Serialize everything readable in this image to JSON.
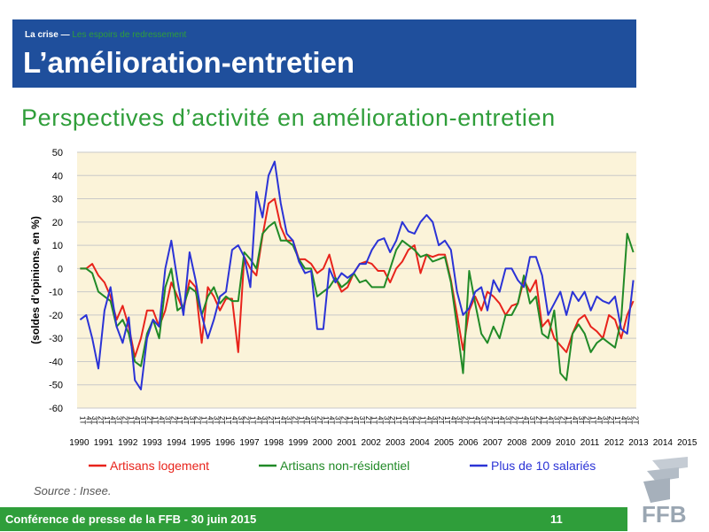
{
  "header": {
    "section": "La crise",
    "separator": " — ",
    "subsection": "Les espoirs de redressement",
    "title": "L’amélioration-entretien"
  },
  "chart_data": {
    "type": "line",
    "title": "Perspectives d’activité en amélioration-entretien",
    "ylabel": "(soldes d’opinions, en %)",
    "ylim": [
      -60,
      50
    ],
    "yticks": [
      50,
      40,
      30,
      20,
      10,
      0,
      -10,
      -20,
      -30,
      -40,
      -50,
      -60
    ],
    "year_labels": [
      "1990",
      "1991",
      "1992",
      "1993",
      "1994",
      "1995",
      "1996",
      "1997",
      "1998",
      "1999",
      "2000",
      "2001",
      "2002",
      "2003",
      "2004",
      "2005",
      "2006",
      "2007",
      "2008",
      "2009",
      "2010",
      "2011",
      "2012",
      "2013",
      "2014",
      "2015"
    ],
    "quarter_labels": [
      "1T",
      "4T",
      "3T",
      "2T"
    ],
    "legend_position": "bottom",
    "grid": "horizontal",
    "plot_background": "#fbf3d9",
    "series": [
      {
        "name": "Artisans logement",
        "color": "#e8231b",
        "values": [
          0,
          0,
          2,
          -3,
          -6,
          -12,
          -22,
          -16,
          -25,
          -38,
          -30,
          -18,
          -18,
          -25,
          -18,
          -6,
          -12,
          -18,
          -5,
          -8,
          -32,
          -8,
          -12,
          -18,
          -13,
          -13,
          -36,
          5,
          0,
          -3,
          14,
          28,
          30,
          18,
          12,
          12,
          4,
          4,
          2,
          -2,
          0,
          6,
          -4,
          -10,
          -8,
          -2,
          2,
          3,
          2,
          -1,
          -1,
          -6,
          0,
          3,
          8,
          10,
          -2,
          6,
          5,
          6,
          6,
          -5,
          -20,
          -35,
          -18,
          -12,
          -18,
          -10,
          -12,
          -15,
          -20,
          -16,
          -15,
          -5,
          -10,
          -5,
          -25,
          -22,
          -30,
          -33,
          -36,
          -28,
          -22,
          -20,
          -25,
          -27,
          -30,
          -20,
          -22,
          -30,
          -20,
          -14
        ]
      },
      {
        "name": "Artisans non-résidentiel",
        "color": "#218a27",
        "values": [
          0,
          0,
          -2,
          -10,
          -12,
          -14,
          -25,
          -22,
          -28,
          -40,
          -42,
          -28,
          -22,
          -30,
          -8,
          0,
          -18,
          -16,
          -8,
          -10,
          -20,
          -12,
          -8,
          -15,
          -12,
          -14,
          -14,
          7,
          4,
          0,
          15,
          18,
          20,
          12,
          12,
          10,
          4,
          0,
          0,
          -12,
          -10,
          -8,
          -4,
          -8,
          -6,
          -2,
          -6,
          -5,
          -8,
          -8,
          -8,
          0,
          8,
          12,
          10,
          8,
          5,
          6,
          3,
          4,
          5,
          -6,
          -25,
          -45,
          -1,
          -15,
          -28,
          -32,
          -25,
          -30,
          -20,
          -20,
          -15,
          -3,
          -15,
          -12,
          -28,
          -30,
          -18,
          -45,
          -48,
          -28,
          -24,
          -28,
          -36,
          -32,
          -30,
          -32,
          -34,
          -22,
          15,
          7
        ]
      },
      {
        "name": "Plus de 10 salariés",
        "color": "#2b33d6",
        "values": [
          -22,
          -20,
          -30,
          -43,
          -18,
          -8,
          -25,
          -32,
          -21,
          -48,
          -52,
          -30,
          -22,
          -25,
          0,
          12,
          -5,
          -20,
          7,
          -5,
          -20,
          -30,
          -22,
          -12,
          -10,
          8,
          10,
          5,
          -8,
          33,
          22,
          40,
          46,
          28,
          15,
          12,
          3,
          -2,
          -1,
          -26,
          -26,
          0,
          -6,
          -2,
          -4,
          -2,
          2,
          2,
          8,
          12,
          13,
          7,
          12,
          20,
          16,
          15,
          20,
          23,
          20,
          10,
          12,
          8,
          -10,
          -20,
          -17,
          -10,
          -8,
          -18,
          -5,
          -10,
          0,
          0,
          -5,
          -8,
          5,
          5,
          -3,
          -20,
          -15,
          -10,
          -20,
          -10,
          -14,
          -10,
          -18,
          -12,
          -14,
          -15,
          -12,
          -26,
          -28,
          -5
        ]
      }
    ]
  },
  "source": "Source : Insee.",
  "footer": {
    "text": "Conférence de presse de la FFB - 30 juin 2015",
    "page": "11"
  },
  "logo": {
    "text": "FFB",
    "color": "#9aa6b2"
  }
}
